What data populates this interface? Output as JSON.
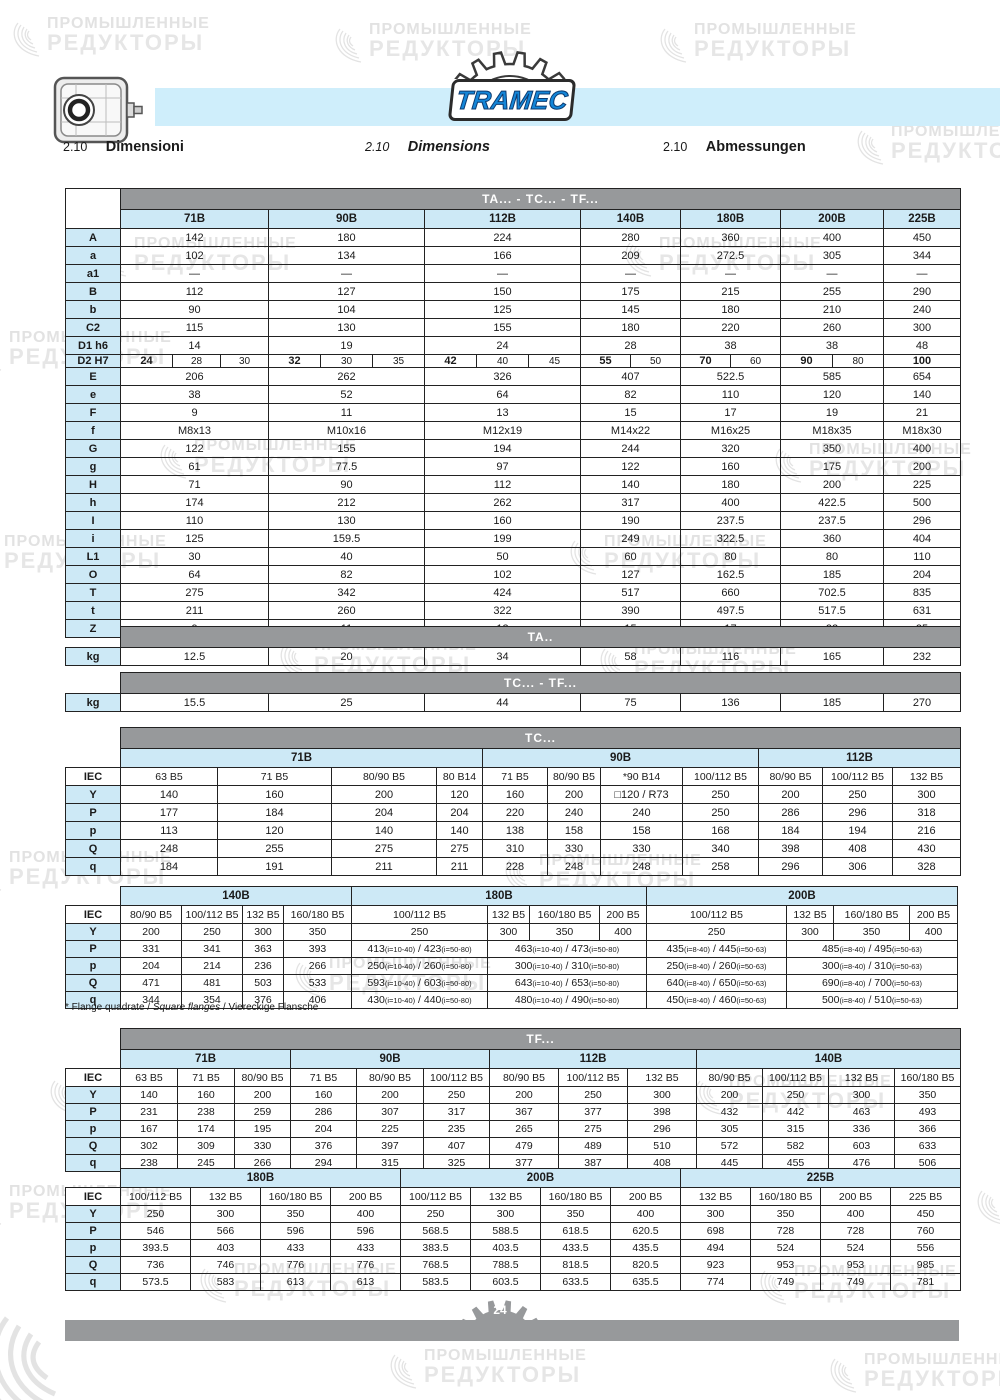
{
  "watermark": {
    "line1": "ПРОМЫШЛЕННЫЕ",
    "line2": "РЕДУКТОРЫ"
  },
  "header": {
    "logo_text": "TRAMEC",
    "sections": [
      {
        "num": "2.10",
        "label": "Dimensioni"
      },
      {
        "num": "2.10",
        "label": "Dimensions"
      },
      {
        "num": "2.10",
        "label": "Abmessungen"
      }
    ]
  },
  "dim_table": {
    "title": "TA... - TC... - TF...",
    "columns": [
      "71B",
      "90B",
      "112B",
      "140B",
      "180B",
      "200B",
      "225B"
    ],
    "rows": [
      {
        "label": "A",
        "values": [
          "142",
          "180",
          "224",
          "280",
          "360",
          "400",
          "450"
        ]
      },
      {
        "label": "a",
        "values": [
          "102",
          "134",
          "166",
          "209",
          "272.5",
          "305",
          "344"
        ]
      },
      {
        "label": "a1",
        "values": [
          "—",
          "—",
          "—",
          "—",
          "—",
          "—",
          "—"
        ]
      },
      {
        "label": "B",
        "values": [
          "112",
          "127",
          "150",
          "175",
          "215",
          "255",
          "290"
        ]
      },
      {
        "label": "b",
        "values": [
          "90",
          "104",
          "125",
          "145",
          "180",
          "210",
          "240"
        ]
      },
      {
        "label": "C2",
        "values": [
          "115",
          "130",
          "155",
          "180",
          "220",
          "260",
          "300"
        ]
      },
      {
        "label": "D1 h6",
        "values": [
          "14",
          "19",
          "24",
          "28",
          "38",
          "38",
          "48"
        ]
      },
      {
        "label": "D2 H7",
        "subcells": [
          [
            "24",
            "28",
            "30"
          ],
          [
            "32",
            "30",
            "35"
          ],
          [
            "42",
            "40",
            "45"
          ],
          [
            "55",
            "50"
          ],
          [
            "70",
            "60"
          ],
          [
            "90",
            "80"
          ],
          [
            "100"
          ]
        ]
      },
      {
        "label": "E",
        "values": [
          "206",
          "262",
          "326",
          "407",
          "522.5",
          "585",
          "654"
        ]
      },
      {
        "label": "e",
        "values": [
          "38",
          "52",
          "64",
          "82",
          "110",
          "120",
          "140"
        ]
      },
      {
        "label": "F",
        "values": [
          "9",
          "11",
          "13",
          "15",
          "17",
          "19",
          "21"
        ]
      },
      {
        "label": "f",
        "values": [
          "M8x13",
          "M10x16",
          "M12x19",
          "M14x22",
          "M16x25",
          "M18x35",
          "M18x30"
        ]
      },
      {
        "label": "G",
        "values": [
          "122",
          "155",
          "194",
          "244",
          "320",
          "350",
          "400"
        ]
      },
      {
        "label": "g",
        "values": [
          "61",
          "77.5",
          "97",
          "122",
          "160",
          "175",
          "200"
        ]
      },
      {
        "label": "H",
        "values": [
          "71",
          "90",
          "112",
          "140",
          "180",
          "200",
          "225"
        ]
      },
      {
        "label": "h",
        "values": [
          "174",
          "212",
          "262",
          "317",
          "400",
          "422.5",
          "500"
        ]
      },
      {
        "label": "I",
        "values": [
          "110",
          "130",
          "160",
          "190",
          "237.5",
          "237.5",
          "296"
        ]
      },
      {
        "label": "i",
        "values": [
          "125",
          "159.5",
          "199",
          "249",
          "322.5",
          "360",
          "404"
        ]
      },
      {
        "label": "L1",
        "values": [
          "30",
          "40",
          "50",
          "60",
          "80",
          "80",
          "110"
        ]
      },
      {
        "label": "O",
        "values": [
          "64",
          "82",
          "102",
          "127",
          "162.5",
          "185",
          "204"
        ]
      },
      {
        "label": "T",
        "values": [
          "275",
          "342",
          "424",
          "517",
          "660",
          "702.5",
          "835"
        ]
      },
      {
        "label": "t",
        "values": [
          "211",
          "260",
          "322",
          "390",
          "497.5",
          "517.5",
          "631"
        ]
      },
      {
        "label": "Z",
        "values": [
          "9",
          "11",
          "13",
          "15",
          "17",
          "22",
          "25"
        ]
      }
    ]
  },
  "ta_weights": {
    "title": "TA..",
    "label": "kg",
    "values": [
      "12.5",
      "20",
      "34",
      "58",
      "116",
      "165",
      "232"
    ]
  },
  "tctf_weights": {
    "title": "TC... - TF...",
    "label": "kg",
    "values": [
      "15.5",
      "25",
      "44",
      "75",
      "136",
      "185",
      "270"
    ]
  },
  "tc_section1": {
    "title": "TC...",
    "corner": "IEC",
    "row_labels": [
      "Y",
      "P",
      "p",
      "Q",
      "q"
    ],
    "groups": [
      {
        "name": "71B",
        "iec": [
          "63 B5",
          "71 B5",
          "80/90 B5",
          "80 B14"
        ],
        "rows": [
          [
            "140",
            "160",
            "200",
            "120"
          ],
          [
            "177",
            "184",
            "204",
            "204"
          ],
          [
            "113",
            "120",
            "140",
            "140"
          ],
          [
            "248",
            "255",
            "275",
            "275"
          ],
          [
            "184",
            "191",
            "211",
            "211"
          ]
        ]
      },
      {
        "name": "90B",
        "iec": [
          "71 B5",
          "80/90 B5",
          "*90 B14",
          "100/112 B5"
        ],
        "rows": [
          [
            "160",
            "200",
            "□120 / R73",
            "250"
          ],
          [
            "220",
            "240",
            "240",
            "250"
          ],
          [
            "138",
            "158",
            "158",
            "168"
          ],
          [
            "310",
            "330",
            "330",
            "340"
          ],
          [
            "228",
            "248",
            "248",
            "258"
          ]
        ]
      },
      {
        "name": "112B",
        "iec": [
          "80/90 B5",
          "100/112 B5",
          "132 B5"
        ],
        "rows": [
          [
            "200",
            "250",
            "300"
          ],
          [
            "286",
            "296",
            "318"
          ],
          [
            "184",
            "194",
            "216"
          ],
          [
            "398",
            "408",
            "430"
          ],
          [
            "296",
            "306",
            "328"
          ]
        ]
      }
    ]
  },
  "tc_section2": {
    "corner": "IEC",
    "row_labels": [
      "Y",
      "P",
      "p",
      "Q",
      "q"
    ],
    "groups": [
      {
        "name": "140B",
        "iec": [
          "80/90 B5",
          "100/112 B5",
          "132 B5",
          "160/180 B5"
        ],
        "rows": [
          [
            "200",
            "250",
            "300",
            "350"
          ],
          [
            "331",
            "341",
            "363",
            "393"
          ],
          [
            "204",
            "214",
            "236",
            "266"
          ],
          [
            "471",
            "481",
            "503",
            "533"
          ],
          [
            "344",
            "354",
            "376",
            "406"
          ]
        ]
      },
      {
        "name": "180B",
        "iec": [
          "100/112 B5",
          "132 B5",
          "160/180 B5",
          "200 B5"
        ],
        "rows": [
          [
            "250",
            "300",
            "350",
            "400"
          ],
          [
            {
              "t": "413(i=10-40) / 423(i=50-80)"
            },
            {
              "t": "463(i=10-40) / 473(i=50-80)",
              "span": 3
            }
          ],
          [
            {
              "t": "250(i=10-40) / 260(i=50-80)"
            },
            {
              "t": "300(i=10-40) / 310(i=50-80)",
              "span": 3
            }
          ],
          [
            {
              "t": "593(i=10-40) / 603(i=50-80)"
            },
            {
              "t": "643(i=10-40) / 653(i=50-80)",
              "span": 3
            }
          ],
          [
            {
              "t": "430(i=10-40) / 440(i=50-80)"
            },
            {
              "t": "480(i=10-40) / 490(i=50-80)",
              "span": 3
            }
          ]
        ]
      },
      {
        "name": "200B",
        "iec": [
          "100/112 B5",
          "132 B5",
          "160/180 B5",
          "200 B5"
        ],
        "rows": [
          [
            "250",
            "300",
            "350",
            "400"
          ],
          [
            {
              "t": "435(i=8-40) / 445(i=50-63)"
            },
            {
              "t": "485(i=8-40) / 495(i=50-63)",
              "span": 3
            }
          ],
          [
            {
              "t": "250(i=8-40) / 260(i=50-63)"
            },
            {
              "t": "300(i=8-40) / 310(i=50-63)",
              "span": 3
            }
          ],
          [
            {
              "t": "640(i=8-40) / 650(i=50-63)"
            },
            {
              "t": "690(i=8-40) / 700(i=50-63)",
              "span": 3
            }
          ],
          [
            {
              "t": "450(i=8-40) / 460(i=50-63)"
            },
            {
              "t": "500(i=8-40) / 510(i=50-63)",
              "span": 3
            }
          ]
        ]
      }
    ]
  },
  "footnote": {
    "prefix": "* Flange quadrate / ",
    "italic": "Square flanges",
    "suffix": " / Viereckige Flansche"
  },
  "tf_section1": {
    "title": "TF...",
    "corner": "IEC",
    "row_labels": [
      "Y",
      "P",
      "p",
      "Q",
      "q"
    ],
    "groups": [
      {
        "name": "71B",
        "iec": [
          "63 B5",
          "71 B5",
          "80/90 B5"
        ],
        "rows": [
          [
            "140",
            "160",
            "200"
          ],
          [
            "231",
            "238",
            "259"
          ],
          [
            "167",
            "174",
            "195"
          ],
          [
            "302",
            "309",
            "330"
          ],
          [
            "238",
            "245",
            "266"
          ]
        ]
      },
      {
        "name": "90B",
        "iec": [
          "71 B5",
          "80/90 B5",
          "100/112 B5"
        ],
        "rows": [
          [
            "160",
            "200",
            "250"
          ],
          [
            "286",
            "307",
            "317"
          ],
          [
            "204",
            "225",
            "235"
          ],
          [
            "376",
            "397",
            "407"
          ],
          [
            "294",
            "315",
            "325"
          ]
        ]
      },
      {
        "name": "112B",
        "iec": [
          "80/90 B5",
          "100/112 B5",
          "132 B5"
        ],
        "rows": [
          [
            "200",
            "250",
            "300"
          ],
          [
            "367",
            "377",
            "398"
          ],
          [
            "265",
            "275",
            "296"
          ],
          [
            "479",
            "489",
            "510"
          ],
          [
            "377",
            "387",
            "408"
          ]
        ]
      },
      {
        "name": "140B",
        "iec": [
          "80/90 B5",
          "100/112 B5",
          "132 B5",
          "160/180 B5"
        ],
        "rows": [
          [
            "200",
            "250",
            "300",
            "350"
          ],
          [
            "432",
            "442",
            "463",
            "493"
          ],
          [
            "305",
            "315",
            "336",
            "366"
          ],
          [
            "572",
            "582",
            "603",
            "633"
          ],
          [
            "445",
            "455",
            "476",
            "506"
          ]
        ]
      }
    ]
  },
  "tf_section2": {
    "corner": "IEC",
    "row_labels": [
      "Y",
      "P",
      "p",
      "Q",
      "q"
    ],
    "groups": [
      {
        "name": "180B",
        "iec": [
          "100/112 B5",
          "132 B5",
          "160/180 B5",
          "200 B5"
        ],
        "rows": [
          [
            "250",
            "300",
            "350",
            "400"
          ],
          [
            "546",
            "566",
            "596",
            "596"
          ],
          [
            "393.5",
            "403",
            "433",
            "433"
          ],
          [
            "736",
            "746",
            "776",
            "776"
          ],
          [
            "573.5",
            "583",
            "613",
            "613"
          ]
        ]
      },
      {
        "name": "200B",
        "iec": [
          "100/112 B5",
          "132 B5",
          "160/180 B5",
          "200 B5"
        ],
        "rows": [
          [
            "250",
            "300",
            "350",
            "400"
          ],
          [
            "568.5",
            "588.5",
            "618.5",
            "620.5"
          ],
          [
            "383.5",
            "403.5",
            "433.5",
            "435.5"
          ],
          [
            "768.5",
            "788.5",
            "818.5",
            "820.5"
          ],
          [
            "583.5",
            "603.5",
            "633.5",
            "635.5"
          ]
        ]
      },
      {
        "name": "225B",
        "iec": [
          "132 B5",
          "160/180 B5",
          "200 B5",
          "225 B5"
        ],
        "rows": [
          [
            "300",
            "350",
            "400",
            "450"
          ],
          [
            "698",
            "728",
            "728",
            "760"
          ],
          [
            "494",
            "524",
            "524",
            "556"
          ],
          [
            "923",
            "953",
            "953",
            "985"
          ],
          [
            "774",
            "749",
            "749",
            "781"
          ]
        ]
      }
    ]
  },
  "footer": {
    "page_number": "24"
  }
}
